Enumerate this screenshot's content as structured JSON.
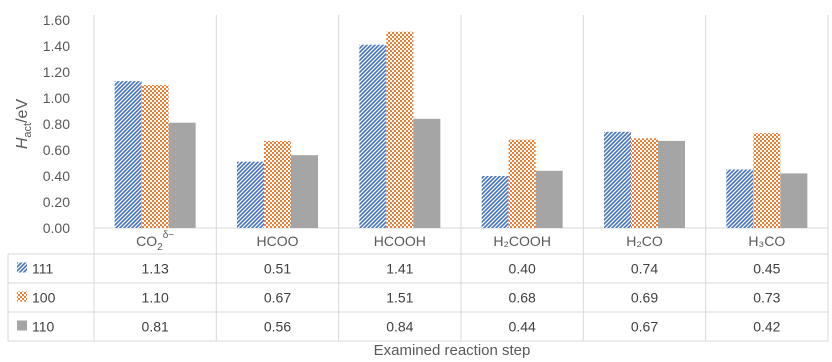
{
  "chart_data": {
    "type": "bar",
    "xlabel": "Examined reaction step",
    "ylabel": {
      "main": "H",
      "sub": "act",
      "unit": "/eV"
    },
    "ylim": [
      0,
      1.6
    ],
    "yticks": [
      "0.00",
      "0.20",
      "0.40",
      "0.60",
      "0.80",
      "1.00",
      "1.20",
      "1.40",
      "1.60"
    ],
    "categories": [
      {
        "label": "CO2δ−",
        "base": "CO",
        "sub": "2",
        "sup": "δ−"
      },
      {
        "label": "HCOO",
        "base": "HCOO",
        "sub": "",
        "sup": ""
      },
      {
        "label": "HCOOH",
        "base": "HCOOH",
        "sub": "",
        "sup": ""
      },
      {
        "label": "H₂COOH",
        "base": "H₂COOH",
        "sub": "",
        "sup": ""
      },
      {
        "label": "H₂CO",
        "base": "H₂CO",
        "sub": "",
        "sup": ""
      },
      {
        "label": "H₃CO",
        "base": "H₃CO",
        "sub": "",
        "sup": ""
      }
    ],
    "series": [
      {
        "name": "111",
        "pattern": "diagonal-stripes",
        "color": "#4472C4",
        "values": [
          1.13,
          0.51,
          1.41,
          0.4,
          0.74,
          0.45
        ],
        "labels": [
          "1.13",
          "0.51",
          "1.41",
          "0.40",
          "0.74",
          "0.45"
        ]
      },
      {
        "name": "100",
        "pattern": "checkerboard",
        "color": "#ED7D31",
        "values": [
          1.1,
          0.67,
          1.51,
          0.68,
          0.69,
          0.73
        ],
        "labels": [
          "1.10",
          "0.67",
          "1.51",
          "0.68",
          "0.69",
          "0.73"
        ]
      },
      {
        "name": "110",
        "pattern": "solid",
        "color": "#A5A5A5",
        "values": [
          0.81,
          0.56,
          0.84,
          0.44,
          0.67,
          0.42
        ],
        "labels": [
          "0.81",
          "0.56",
          "0.84",
          "0.44",
          "0.67",
          "0.42"
        ]
      }
    ],
    "grid": "vertical-category-separators",
    "legend": "data-table-left"
  }
}
